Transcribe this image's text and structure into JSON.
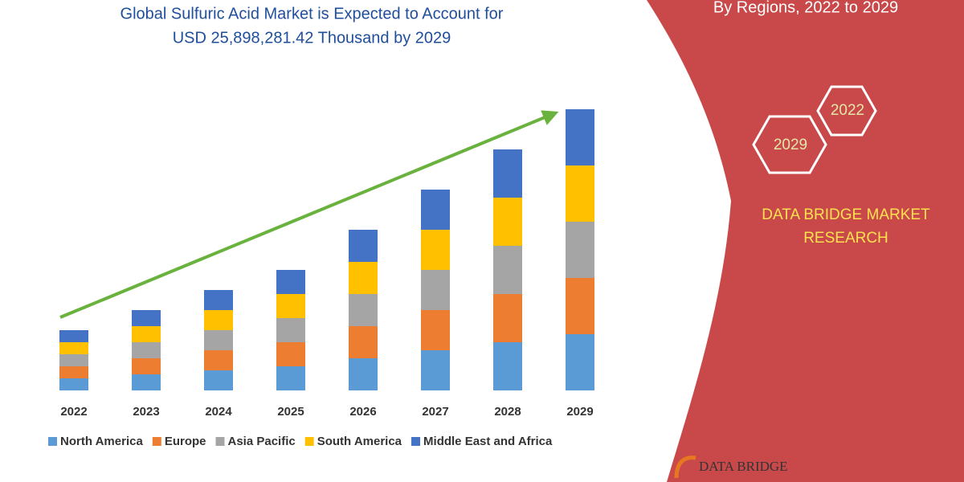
{
  "chart_data": {
    "type": "stacked-bar",
    "title": [
      "Global Sulfuric Acid Market is Expected to Account for",
      "USD 25,898,281.42 Thousand by 2029"
    ],
    "categories": [
      "2022",
      "2023",
      "2024",
      "2025",
      "2026",
      "2027",
      "2028",
      "2029"
    ],
    "series": [
      {
        "name": "North America",
        "color": "#5b9bd5",
        "values": [
          15,
          20,
          25,
          30,
          40,
          50,
          60,
          70
        ]
      },
      {
        "name": "Europe",
        "color": "#ed7d31",
        "values": [
          15,
          20,
          25,
          30,
          40,
          50,
          60,
          70
        ]
      },
      {
        "name": "Asia Pacific",
        "color": "#a5a5a5",
        "values": [
          15,
          20,
          25,
          30,
          40,
          50,
          60,
          70
        ]
      },
      {
        "name": "South America",
        "color": "#ffc000",
        "values": [
          15,
          20,
          25,
          30,
          40,
          50,
          60,
          70
        ]
      },
      {
        "name": "Middle East and Africa",
        "color": "#4472c4",
        "values": [
          15,
          20,
          25,
          30,
          40,
          50,
          60,
          70
        ]
      }
    ],
    "ylim": [
      0,
      360
    ],
    "grid": false,
    "legend": "bottom"
  },
  "side_panel": {
    "subtitle": "By Regions, 2022 to 2029",
    "hexagons": [
      "2022",
      "2029"
    ],
    "brand": [
      "DATA BRIDGE MARKET",
      "RESEARCH"
    ],
    "logo": "DATA BRIDGE"
  }
}
